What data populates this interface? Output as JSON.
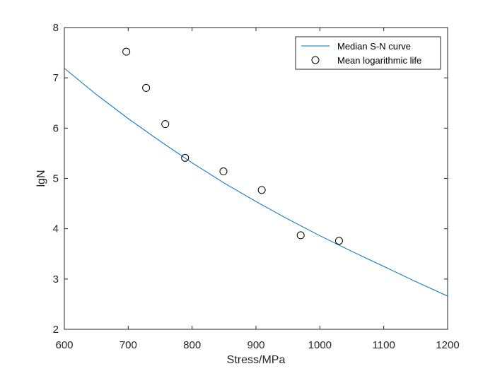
{
  "chart_data": {
    "type": "line",
    "title": "",
    "xlabel": "Stress/MPa",
    "ylabel": "lgN",
    "xlim": [
      600,
      1200
    ],
    "ylim": [
      2,
      8
    ],
    "xticks": [
      600,
      700,
      800,
      900,
      1000,
      1100,
      1200
    ],
    "yticks": [
      2,
      3,
      4,
      5,
      6,
      7,
      8
    ],
    "grid": false,
    "legend_position": "top-right",
    "colors": {
      "curve": "#0072BD",
      "markers": "#000000",
      "axes": "#262626"
    },
    "series": [
      {
        "name": "Median S-N curve",
        "kind": "line",
        "x": [
          600,
          650,
          700,
          750,
          800,
          850,
          900,
          950,
          1000,
          1050,
          1100,
          1150,
          1200
        ],
        "y": [
          7.19,
          6.67,
          6.19,
          5.74,
          5.31,
          4.91,
          4.54,
          4.19,
          3.86,
          3.55,
          3.25,
          2.95,
          2.66
        ]
      },
      {
        "name": "Mean logarithmic life",
        "kind": "scatter",
        "marker": "open-circle",
        "x": [
          697,
          728,
          758,
          789,
          849,
          909,
          970,
          1030
        ],
        "y": [
          7.52,
          6.8,
          6.08,
          5.41,
          5.14,
          4.77,
          3.87,
          3.76
        ]
      }
    ]
  }
}
